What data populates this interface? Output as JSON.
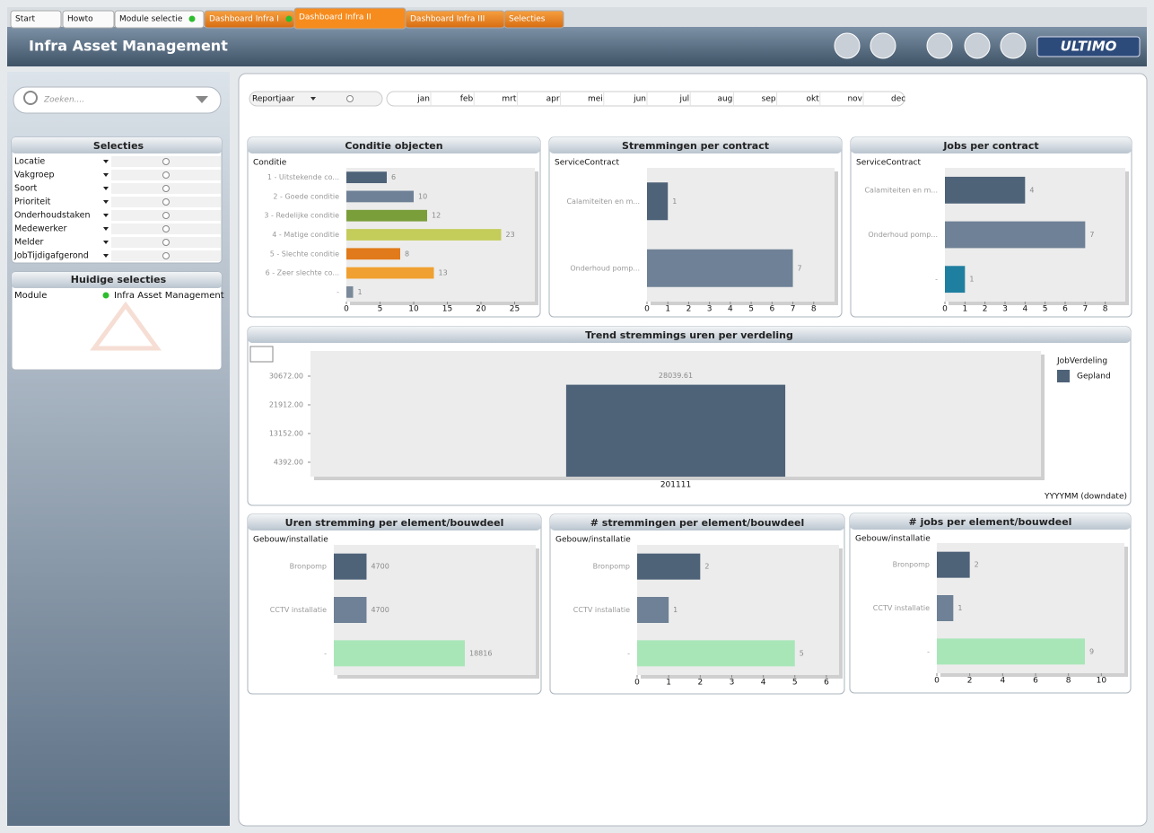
{
  "tabs": [
    "Start",
    "Howto",
    "Module selectie",
    "Dashboard Infra I",
    "Dashboard Infra II",
    "Dashboard Infra III",
    "Selecties"
  ],
  "header": {
    "title": "Infra Asset Management",
    "logo": "ULTIMO"
  },
  "search": {
    "placeholder": "Zoeken...."
  },
  "selecties": {
    "title": "Selecties",
    "fields": [
      "Locatie",
      "Vakgroep",
      "Soort",
      "Prioriteit",
      "Onderhoudstaken",
      "Medewerker",
      "Melder",
      "JobTijdigafgerond"
    ]
  },
  "huidige": {
    "title": "Huidige selecties",
    "field": "Module",
    "value": "Infra Asset Management"
  },
  "reportjaar": {
    "label": "Reportjaar",
    "months": [
      "jan",
      "feb",
      "mrt",
      "apr",
      "mei",
      "jun",
      "jul",
      "aug",
      "sep",
      "okt",
      "nov",
      "dec"
    ]
  },
  "charts": [
    {
      "type": "hbar",
      "title": "Conditie objecten",
      "dimension": "Conditie",
      "categories": [
        "1 - Uitstekende co...",
        "2 - Goede conditie",
        "3 - Redelijke conditie",
        "4 - Matige conditie",
        "5 - Slechte conditie",
        "6 - Zeer slechte co...",
        "-"
      ],
      "values": [
        6,
        10,
        12,
        23,
        8,
        13,
        1
      ],
      "colors": [
        "#4e6278",
        "#6f8196",
        "#7a9e3a",
        "#c4cc5a",
        "#e07a1a",
        "#f0a030",
        "#7a8a9a"
      ],
      "xlim": [
        0,
        28
      ],
      "xticks": [
        0,
        5,
        10,
        15,
        20,
        25
      ]
    },
    {
      "type": "hbar",
      "title": "Stremmingen per contract",
      "dimension": "ServiceContract",
      "categories": [
        "Calamiteiten en m...",
        "Onderhoud pomp..."
      ],
      "values": [
        1,
        7
      ],
      "colors": [
        "#4e6278",
        "#6f8196"
      ],
      "xlim": [
        0,
        9
      ],
      "xticks": [
        0,
        1,
        2,
        3,
        4,
        5,
        6,
        7,
        8
      ]
    },
    {
      "type": "hbar",
      "title": "Jobs per contract",
      "dimension": "ServiceContract",
      "categories": [
        "Calamiteiten en m...",
        "Onderhoud pomp...",
        "-"
      ],
      "values": [
        4,
        7,
        1
      ],
      "colors": [
        "#4e6278",
        "#6f8196",
        "#1f7fa0"
      ],
      "xlim": [
        0,
        9
      ],
      "xticks": [
        0,
        1,
        2,
        3,
        4,
        5,
        6,
        7,
        8
      ]
    },
    {
      "type": "vbar",
      "title": "Trend stremmings uren per verdeling",
      "categories": [
        "201111"
      ],
      "x_label": "YYYYMM (downdate)",
      "legend_title": "JobVerdeling",
      "series": [
        {
          "name": "Gepland",
          "color": "#4e6278",
          "values": [
            28039.61
          ]
        }
      ],
      "ylim": [
        0,
        38340
      ],
      "yticks": [
        {
          "value": 4392,
          "label": "4392.00"
        },
        {
          "value": 13152,
          "label": "13152.00"
        },
        {
          "value": 21912,
          "label": "21912.00"
        },
        {
          "value": 30672,
          "label": "30672.00"
        }
      ]
    },
    {
      "type": "hbar",
      "title": "Uren stremming per element/bouwdeel",
      "dimension": "Gebouw/installatie",
      "categories": [
        "Bronpomp",
        "CCTV installatie",
        "-"
      ],
      "values": [
        4700,
        4700,
        18816
      ],
      "colors": [
        "#4e6278",
        "#6f8196",
        "#a8e6b8"
      ],
      "xlim": [
        0,
        29000
      ]
    },
    {
      "type": "hbar",
      "title": "# stremmingen per element/bouwdeel",
      "dimension": "Gebouw/installatie",
      "categories": [
        "Bronpomp",
        "CCTV installatie",
        "-"
      ],
      "values": [
        2,
        1,
        5
      ],
      "colors": [
        "#4e6278",
        "#6f8196",
        "#a8e6b8"
      ],
      "xlim": [
        0,
        6.4
      ],
      "xticks": [
        0,
        1,
        2,
        3,
        4,
        5,
        6
      ]
    },
    {
      "type": "hbar",
      "title": "# jobs per element/bouwdeel",
      "dimension": "Gebouw/installatie",
      "categories": [
        "Bronpomp",
        "CCTV installatie",
        "-"
      ],
      "values": [
        2,
        1,
        9
      ],
      "colors": [
        "#4e6278",
        "#6f8196",
        "#a8e6b8"
      ],
      "xlim": [
        0,
        11.4
      ],
      "xticks": [
        0,
        2,
        4,
        6,
        8,
        10
      ]
    }
  ]
}
